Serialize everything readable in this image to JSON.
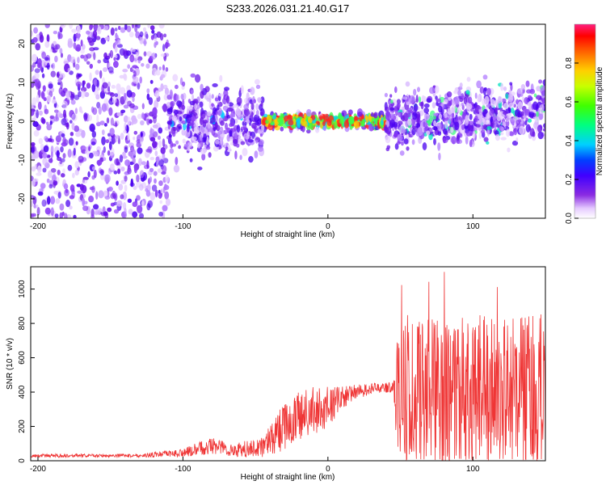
{
  "title": "S233.2026.031.21.40.G17",
  "chart_data": [
    {
      "type": "heatmap",
      "name": "spectrogram",
      "xlabel": "Height of straight line (km)",
      "ylabel": "Frequency (Hz)",
      "xlim": [
        -205,
        150
      ],
      "ylim": [
        -25,
        25
      ],
      "xticks": [
        -200,
        -100,
        0,
        100
      ],
      "yticks": [
        -20,
        -10,
        0,
        10,
        20
      ],
      "colorbar": {
        "label": "Normalized spectral amplitude",
        "range": [
          0.0,
          1.0
        ],
        "ticks": [
          0.0,
          0.2,
          0.4,
          0.6,
          0.8
        ]
      },
      "description_bands": [
        {
          "x_from": -205,
          "x_to": -110,
          "freq_spread": 25,
          "amplitude": 0.12
        },
        {
          "x_from": -110,
          "x_to": -45,
          "freq_spread": 10,
          "amplitude": 0.15
        },
        {
          "x_from": -45,
          "x_to": 40,
          "freq_spread": 2,
          "amplitude": 0.8
        },
        {
          "x_from": 40,
          "x_to": 150,
          "freq_spread": 8,
          "amplitude": 0.3
        }
      ]
    },
    {
      "type": "line",
      "name": "snr",
      "xlabel": "Height of straight line (km)",
      "ylabel": "SNR (10 * v/v)",
      "xlim": [
        -205,
        150
      ],
      "ylim": [
        0,
        1130
      ],
      "xticks": [
        -200,
        -100,
        0,
        100
      ],
      "yticks": [
        0,
        200,
        400,
        600,
        800,
        1000
      ],
      "color": "#ef3535",
      "envelope": [
        {
          "x": -205,
          "mean": 30,
          "noise": 10
        },
        {
          "x": -130,
          "mean": 30,
          "noise": 10
        },
        {
          "x": -100,
          "mean": 45,
          "noise": 25
        },
        {
          "x": -80,
          "mean": 90,
          "noise": 50
        },
        {
          "x": -65,
          "mean": 60,
          "noise": 40
        },
        {
          "x": -45,
          "mean": 80,
          "noise": 60
        },
        {
          "x": -30,
          "mean": 200,
          "noise": 140
        },
        {
          "x": -15,
          "mean": 280,
          "noise": 150
        },
        {
          "x": 0,
          "mean": 310,
          "noise": 120
        },
        {
          "x": 15,
          "mean": 390,
          "noise": 50
        },
        {
          "x": 30,
          "mean": 420,
          "noise": 30
        },
        {
          "x": 45,
          "mean": 430,
          "noise": 30
        },
        {
          "x": 48,
          "mean": 400,
          "noise": 420
        },
        {
          "x": 150,
          "mean": 380,
          "noise": 480
        }
      ]
    }
  ]
}
